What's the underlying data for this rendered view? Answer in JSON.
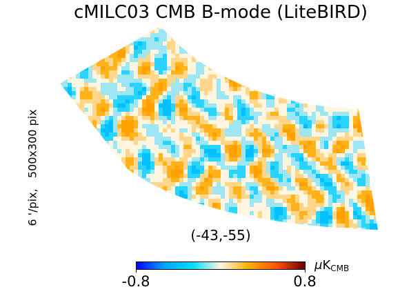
{
  "title": "cMILC03 CMB B-mode (LiteBIRD)",
  "side_label": "6 '/pix,   500x300 pix",
  "center_coord": "(-43,-55)",
  "colorbar": {
    "min_label": "-0.8",
    "max_label": "0.8",
    "unit_mu": "μ",
    "unit_main": "K",
    "unit_sub": "CMB",
    "min_value": -0.8,
    "max_value": 0.8,
    "stops": [
      "#0000ff",
      "#00a5ff",
      "#00e0ff",
      "#fff6e0",
      "#ffb000",
      "#ff5000",
      "#6b0000"
    ]
  },
  "map": {
    "colors": [
      "#00c0ff",
      "#2bd3ff",
      "#9fe6f5",
      "#fff6e0",
      "#ffd68a",
      "#ffb21a",
      "#ff9f00"
    ]
  }
}
